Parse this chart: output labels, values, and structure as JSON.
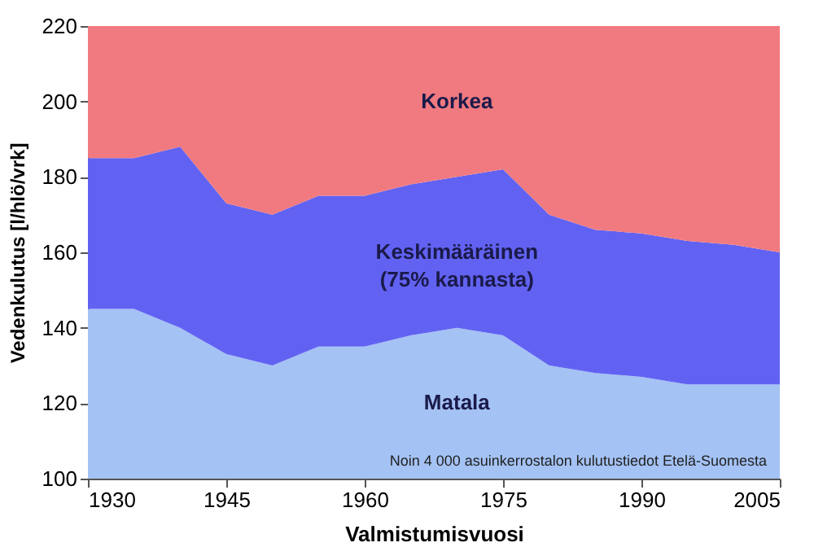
{
  "chart_data": {
    "type": "area",
    "xlabel": "Valmistumisvuosi",
    "ylabel": "Vedenkulutus [l/hlö/vrk]",
    "x": [
      1930,
      1935,
      1940,
      1945,
      1950,
      1955,
      1960,
      1965,
      1970,
      1975,
      1980,
      1985,
      1990,
      1995,
      2000,
      2005
    ],
    "series": [
      {
        "name": "Matala",
        "color": "#a4c2f4",
        "values": [
          145,
          145,
          140,
          133,
          130,
          135,
          135,
          138,
          140,
          138,
          130,
          128,
          127,
          125,
          125,
          125
        ]
      },
      {
        "name": "Keskimääräinen\n(75% kannasta)",
        "color": "#6262f2",
        "values": [
          185,
          185,
          188,
          173,
          170,
          175,
          175,
          178,
          180,
          182,
          170,
          166,
          165,
          163,
          162,
          160
        ]
      },
      {
        "name": "Korkea",
        "color": "#f07a80",
        "values": [
          220,
          220,
          220,
          220,
          220,
          220,
          220,
          220,
          220,
          220,
          220,
          220,
          220,
          220,
          220,
          220
        ]
      }
    ],
    "xlim": [
      1930,
      2005
    ],
    "xticks": [
      1930,
      1945,
      1960,
      1975,
      1990,
      2005
    ],
    "ylim": [
      100,
      220
    ],
    "yticks": [
      100,
      120,
      140,
      160,
      180,
      200,
      220
    ],
    "annotations": [
      "Noin 4 000 asuinkerrostalon kulutustiedot Etelä-Suomesta"
    ]
  }
}
